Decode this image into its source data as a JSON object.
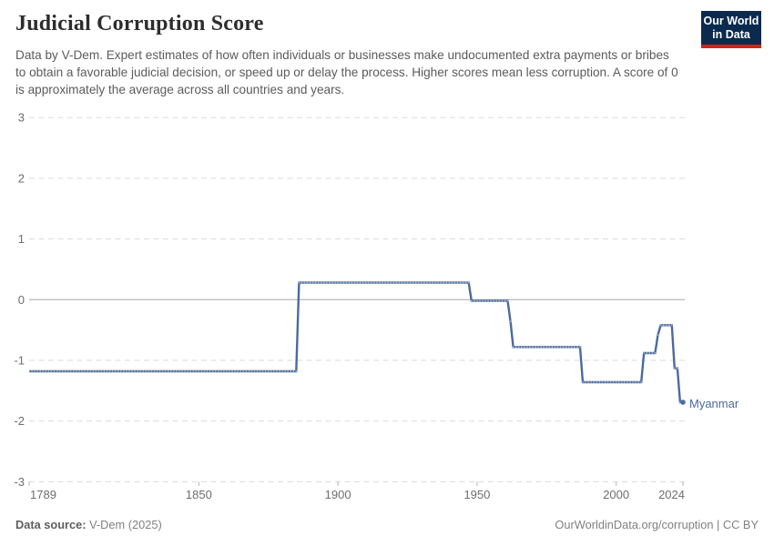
{
  "header": {
    "title": "Judicial Corruption Score",
    "subtitle": "Data by V-Dem. Expert estimates of how often individuals or businesses make undocumented extra payments or bribes to obtain a favorable judicial decision, or speed up or delay the process. Higher scores mean less corruption. A score of 0 is approximately the average across all countries and years.",
    "logo": {
      "line1": "Our World",
      "line2": "in Data",
      "bg_color": "#0b2a4e",
      "accent_color": "#cf2417"
    }
  },
  "chart_data": {
    "type": "line",
    "title": "Judicial Corruption Score",
    "xlabel": "",
    "ylabel": "",
    "xlim": [
      1789,
      2024
    ],
    "ylim": [
      -3,
      3
    ],
    "x_ticks": [
      1789,
      1850,
      1900,
      1950,
      2000,
      2024
    ],
    "y_ticks": [
      3,
      2,
      1,
      0,
      -1,
      -2,
      -3
    ],
    "grid": "dashed-horizontal-gridlines",
    "zero_line": true,
    "legend_position": "end-of-line-label",
    "line_color": "#4C6A9C",
    "series": [
      {
        "name": "Myanmar",
        "segments": [
          {
            "start_year": 1789,
            "end_year": 1885,
            "value": -1.18
          },
          {
            "start_year": 1886,
            "end_year": 1947,
            "value": 0.28
          },
          {
            "start_year": 1948,
            "end_year": 1961,
            "value": -0.02
          },
          {
            "start_year": 1962,
            "end_year": 1962,
            "value": -0.36
          },
          {
            "start_year": 1963,
            "end_year": 1987,
            "value": -0.78
          },
          {
            "start_year": 1988,
            "end_year": 2009,
            "value": -1.36
          },
          {
            "start_year": 2010,
            "end_year": 2014,
            "value": -0.88
          },
          {
            "start_year": 2015,
            "end_year": 2015,
            "value": -0.58
          },
          {
            "start_year": 2016,
            "end_year": 2020,
            "value": -0.42
          },
          {
            "start_year": 2021,
            "end_year": 2022,
            "value": -1.13
          },
          {
            "start_year": 2023,
            "end_year": 2024,
            "value": -1.69
          }
        ]
      }
    ]
  },
  "footer": {
    "source_label": "Data source:",
    "source_value": "V-Dem (2025)",
    "note": "OurWorldinData.org/corruption | CC BY"
  }
}
